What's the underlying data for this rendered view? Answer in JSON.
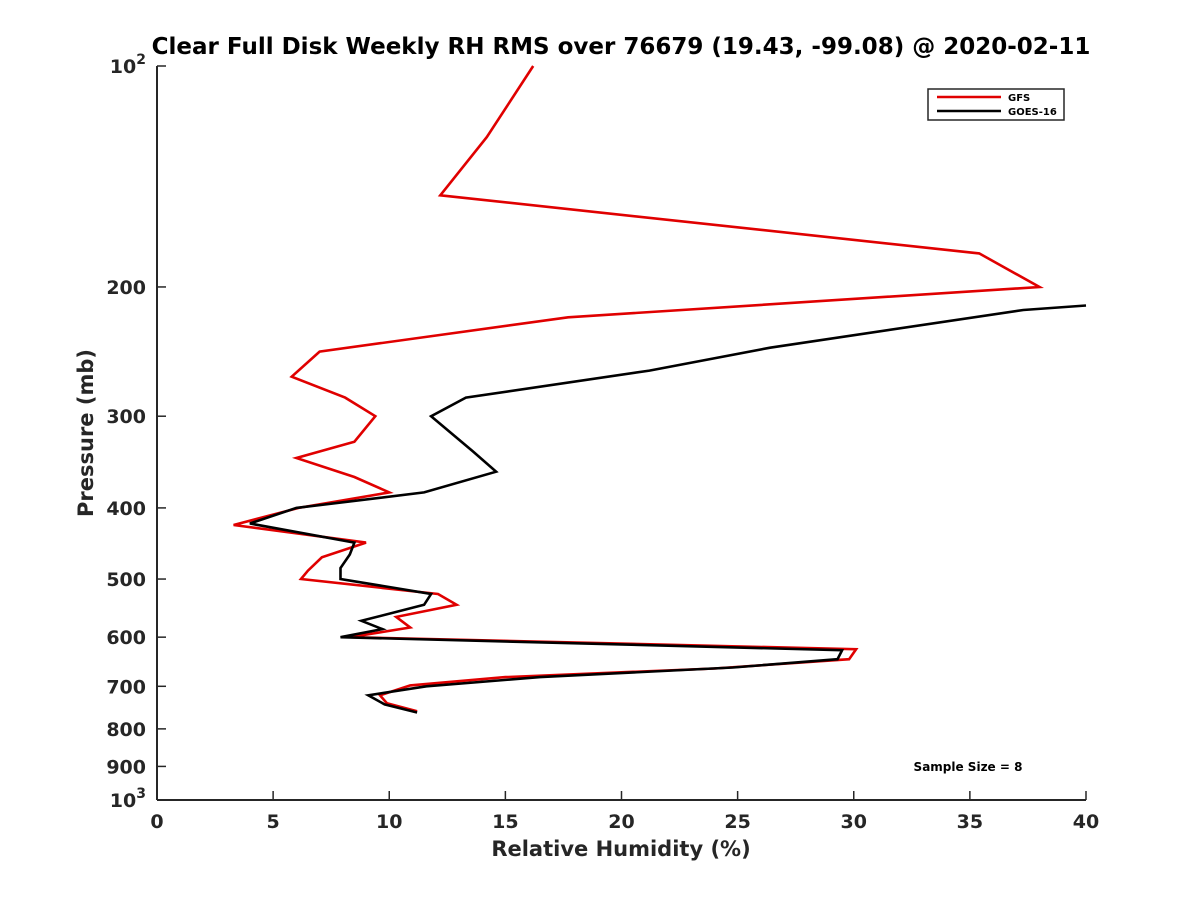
{
  "chart_data": {
    "type": "line",
    "title": "Clear Full Disk Weekly RH RMS over 76679 (19.43, -99.08) @ 2020-02-11",
    "xlabel": "Relative Humidity (%)",
    "ylabel": "Pressure (mb)",
    "xlim": [
      0,
      40
    ],
    "ylim": [
      100,
      1000
    ],
    "y_scale": "log",
    "y_reversed": true,
    "x_ticks": [
      "0",
      "5",
      "10",
      "15",
      "20",
      "25",
      "30",
      "35",
      "40"
    ],
    "x_tick_values": [
      0,
      5,
      10,
      15,
      20,
      25,
      30,
      35,
      40
    ],
    "y_tick_values": [
      100,
      200,
      300,
      400,
      500,
      600,
      700,
      800,
      900,
      1000
    ],
    "y_tick_labels": [
      {
        "base": "10",
        "sup": "2"
      },
      {
        "base": "200",
        "sup": ""
      },
      {
        "base": "300",
        "sup": ""
      },
      {
        "base": "400",
        "sup": ""
      },
      {
        "base": "500",
        "sup": ""
      },
      {
        "base": "600",
        "sup": ""
      },
      {
        "base": "700",
        "sup": ""
      },
      {
        "base": "800",
        "sup": ""
      },
      {
        "base": "900",
        "sup": ""
      },
      {
        "base": "10",
        "sup": "3"
      }
    ],
    "grid": false,
    "legend": "top-right",
    "annotation": "Sample Size = 8",
    "series": [
      {
        "name": "GFS",
        "color": "#e00000",
        "points": [
          {
            "x": 16.2,
            "y": 100
          },
          {
            "x": 14.2,
            "y": 125
          },
          {
            "x": 12.2,
            "y": 150
          },
          {
            "x": 35.4,
            "y": 180
          },
          {
            "x": 38.0,
            "y": 200
          },
          {
            "x": 17.7,
            "y": 220
          },
          {
            "x": 7.0,
            "y": 245
          },
          {
            "x": 5.8,
            "y": 265
          },
          {
            "x": 8.1,
            "y": 283
          },
          {
            "x": 9.4,
            "y": 300
          },
          {
            "x": 8.5,
            "y": 325
          },
          {
            "x": 6.0,
            "y": 342
          },
          {
            "x": 8.5,
            "y": 363
          },
          {
            "x": 10.0,
            "y": 381
          },
          {
            "x": 6.1,
            "y": 400
          },
          {
            "x": 3.3,
            "y": 422
          },
          {
            "x": 9.0,
            "y": 446
          },
          {
            "x": 7.1,
            "y": 467
          },
          {
            "x": 6.5,
            "y": 487
          },
          {
            "x": 6.2,
            "y": 500
          },
          {
            "x": 12.1,
            "y": 524
          },
          {
            "x": 12.9,
            "y": 542
          },
          {
            "x": 10.3,
            "y": 563
          },
          {
            "x": 10.9,
            "y": 582
          },
          {
            "x": 8.3,
            "y": 600
          },
          {
            "x": 30.1,
            "y": 623
          },
          {
            "x": 29.8,
            "y": 643
          },
          {
            "x": 24.0,
            "y": 662
          },
          {
            "x": 15.0,
            "y": 680
          },
          {
            "x": 10.9,
            "y": 698
          },
          {
            "x": 9.6,
            "y": 720
          },
          {
            "x": 9.9,
            "y": 738
          },
          {
            "x": 11.2,
            "y": 757
          }
        ]
      },
      {
        "name": "GOES-16",
        "color": "#000000",
        "points": [
          {
            "x": 40.0,
            "y": 212
          },
          {
            "x": 37.3,
            "y": 215
          },
          {
            "x": 26.4,
            "y": 242
          },
          {
            "x": 21.2,
            "y": 260
          },
          {
            "x": 13.3,
            "y": 283
          },
          {
            "x": 11.8,
            "y": 300
          },
          {
            "x": 13.6,
            "y": 335
          },
          {
            "x": 14.6,
            "y": 357
          },
          {
            "x": 11.5,
            "y": 381
          },
          {
            "x": 6.0,
            "y": 400
          },
          {
            "x": 4.0,
            "y": 420
          },
          {
            "x": 8.5,
            "y": 446
          },
          {
            "x": 8.3,
            "y": 463
          },
          {
            "x": 7.9,
            "y": 483
          },
          {
            "x": 7.9,
            "y": 500
          },
          {
            "x": 11.8,
            "y": 524
          },
          {
            "x": 11.5,
            "y": 542
          },
          {
            "x": 8.8,
            "y": 570
          },
          {
            "x": 9.7,
            "y": 585
          },
          {
            "x": 7.9,
            "y": 600
          },
          {
            "x": 29.5,
            "y": 625
          },
          {
            "x": 29.3,
            "y": 643
          },
          {
            "x": 24.8,
            "y": 660
          },
          {
            "x": 16.5,
            "y": 680
          },
          {
            "x": 11.6,
            "y": 700
          },
          {
            "x": 9.1,
            "y": 720
          },
          {
            "x": 9.8,
            "y": 741
          },
          {
            "x": 11.2,
            "y": 760
          }
        ]
      }
    ]
  }
}
